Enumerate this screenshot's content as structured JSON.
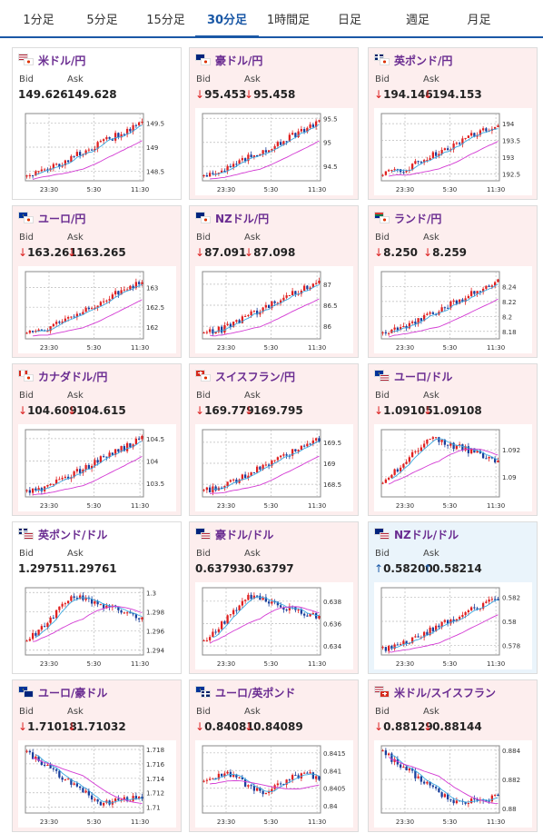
{
  "tabs": [
    {
      "label": "1分足",
      "active": false
    },
    {
      "label": "5分足",
      "active": false
    },
    {
      "label": "15分足",
      "active": false
    },
    {
      "label": "30分足",
      "active": true
    },
    {
      "label": "1時間足",
      "active": false
    },
    {
      "label": "日足",
      "active": false
    },
    {
      "label": "週足",
      "active": false
    },
    {
      "label": "月足",
      "active": false
    }
  ],
  "colors": {
    "accent": "#1a58a6",
    "pair_name": "#6a2c91",
    "down_bg": "#fdeeee",
    "up_bg": "#eaf4fb",
    "candle_up": "#e02020",
    "candle_down": "#1a3f9c",
    "ma_fast": "#3aa8e0",
    "ma_slow": "#d33ad3"
  },
  "labels": {
    "bid": "Bid",
    "ask": "Ask"
  },
  "cards": [
    {
      "name": "米ドル/円",
      "flags": [
        "us",
        "jp"
      ],
      "trend": "none",
      "bid": "149.626",
      "ask": "149.628",
      "chart_data": {
        "type": "candlestick",
        "x_ticks": [
          "23:30",
          "5:30",
          "11:30"
        ],
        "y_ticks": [
          "149.5",
          "149",
          "148.5"
        ],
        "ylim": [
          148.3,
          149.7
        ],
        "shape": "rise"
      }
    },
    {
      "name": "豪ドル/円",
      "flags": [
        "au",
        "jp"
      ],
      "trend": "down",
      "bid": "95.453",
      "ask": "95.458",
      "chart_data": {
        "type": "candlestick",
        "x_ticks": [
          "23:30",
          "5:30",
          "11:30"
        ],
        "y_ticks": [
          "95.5",
          "95",
          "94.5"
        ],
        "ylim": [
          94.2,
          95.6
        ],
        "shape": "rise"
      }
    },
    {
      "name": "英ポンド/円",
      "flags": [
        "gb",
        "jp"
      ],
      "trend": "down",
      "bid": "194.146",
      "ask": "194.153",
      "chart_data": {
        "type": "candlestick",
        "x_ticks": [
          "23:30",
          "5:30",
          "11:30"
        ],
        "y_ticks": [
          "194",
          "193.5",
          "193",
          "192.5"
        ],
        "ylim": [
          192.3,
          194.3
        ],
        "shape": "rise"
      }
    },
    {
      "name": "ユーロ/円",
      "flags": [
        "eu",
        "jp"
      ],
      "trend": "down",
      "bid": "163.261",
      "ask": "163.265",
      "chart_data": {
        "type": "candlestick",
        "x_ticks": [
          "23:30",
          "5:30",
          "11:30"
        ],
        "y_ticks": [
          "163",
          "162.5",
          "162"
        ],
        "ylim": [
          161.7,
          163.4
        ],
        "shape": "rise"
      }
    },
    {
      "name": "NZドル/円",
      "flags": [
        "nz",
        "jp"
      ],
      "trend": "down",
      "bid": "87.091",
      "ask": "87.098",
      "chart_data": {
        "type": "candlestick",
        "x_ticks": [
          "23:30",
          "5:30",
          "11:30"
        ],
        "y_ticks": [
          "87",
          "86.5",
          "86"
        ],
        "ylim": [
          85.7,
          87.3
        ],
        "shape": "rise"
      }
    },
    {
      "name": "ランド/円",
      "flags": [
        "za",
        "jp"
      ],
      "trend": "down",
      "bid": "8.250",
      "ask": "8.259",
      "chart_data": {
        "type": "candlestick",
        "x_ticks": [
          "23:30",
          "5:30",
          "11:30"
        ],
        "y_ticks": [
          "8.24",
          "8.22",
          "8.2",
          "8.18"
        ],
        "ylim": [
          8.17,
          8.26
        ],
        "shape": "rise"
      }
    },
    {
      "name": "カナダドル/円",
      "flags": [
        "ca",
        "jp"
      ],
      "trend": "down",
      "bid": "104.609",
      "ask": "104.615",
      "chart_data": {
        "type": "candlestick",
        "x_ticks": [
          "23:30",
          "5:30",
          "11:30"
        ],
        "y_ticks": [
          "104.5",
          "104",
          "103.5"
        ],
        "ylim": [
          103.2,
          104.7
        ],
        "shape": "rise"
      }
    },
    {
      "name": "スイスフラン/円",
      "flags": [
        "ch",
        "jp"
      ],
      "trend": "down",
      "bid": "169.779",
      "ask": "169.795",
      "chart_data": {
        "type": "candlestick",
        "x_ticks": [
          "23:30",
          "5:30",
          "11:30"
        ],
        "y_ticks": [
          "169.5",
          "169",
          "168.5"
        ],
        "ylim": [
          168.2,
          169.8
        ],
        "shape": "rise"
      }
    },
    {
      "name": "ユーロ/ドル",
      "flags": [
        "eu",
        "us"
      ],
      "trend": "down",
      "bid": "1.09105",
      "ask": "1.09108",
      "chart_data": {
        "type": "candlestick",
        "x_ticks": [
          "23:30",
          "5:30",
          "11:30"
        ],
        "y_ticks": [
          "1.092",
          "1.09"
        ],
        "ylim": [
          1.0885,
          1.0935
        ],
        "shape": "riseFall"
      }
    },
    {
      "name": "英ポンド/ドル",
      "flags": [
        "gb",
        "us"
      ],
      "trend": "none",
      "bid": "1.29751",
      "ask": "1.29761",
      "chart_data": {
        "type": "candlestick",
        "x_ticks": [
          "23:30",
          "5:30",
          "11:30"
        ],
        "y_ticks": [
          "1.3",
          "1.298",
          "1.296",
          "1.294"
        ],
        "ylim": [
          1.2935,
          1.3005
        ],
        "shape": "riseFall"
      }
    },
    {
      "name": "豪ドル/ドル",
      "flags": [
        "au",
        "us"
      ],
      "trend": "none",
      "bid": "0.63793",
      "ask": "0.63797",
      "chart_data": {
        "type": "candlestick",
        "x_ticks": [
          "23:30",
          "5:30",
          "11:30"
        ],
        "y_ticks": [
          "0.638",
          "0.636",
          "0.634"
        ],
        "ylim": [
          0.6332,
          0.6392
        ],
        "shape": "riseFall"
      }
    },
    {
      "name": "NZドル/ドル",
      "flags": [
        "nz",
        "us"
      ],
      "trend": "up",
      "bid": "0.58200",
      "ask": "0.58214",
      "chart_data": {
        "type": "candlestick",
        "x_ticks": [
          "23:30",
          "5:30",
          "11:30"
        ],
        "y_ticks": [
          "0.582",
          "0.58",
          "0.578"
        ],
        "ylim": [
          0.5772,
          0.5828
        ],
        "shape": "rise"
      }
    },
    {
      "name": "ユーロ/豪ドル",
      "flags": [
        "eu",
        "au"
      ],
      "trend": "down",
      "bid": "1.71018",
      "ask": "1.71032",
      "chart_data": {
        "type": "candlestick",
        "x_ticks": [
          "23:30",
          "5:30",
          "11:30"
        ],
        "y_ticks": [
          "1.718",
          "1.716",
          "1.714",
          "1.712",
          "1.71"
        ],
        "ylim": [
          1.7092,
          1.7185
        ],
        "shape": "fall"
      }
    },
    {
      "name": "ユーロ/英ポンド",
      "flags": [
        "eu",
        "gb"
      ],
      "trend": "down",
      "bid": "0.84081",
      "ask": "0.84089",
      "chart_data": {
        "type": "candlestick",
        "x_ticks": [
          "23:30",
          "5:30",
          "11:30"
        ],
        "y_ticks": [
          "0.8415",
          "0.841",
          "0.8405",
          "0.84"
        ],
        "ylim": [
          0.8398,
          0.8417
        ],
        "shape": "flat"
      }
    },
    {
      "name": "米ドル/スイスフラン",
      "flags": [
        "us",
        "ch"
      ],
      "trend": "down",
      "bid": "0.88129",
      "ask": "0.88144",
      "chart_data": {
        "type": "candlestick",
        "x_ticks": [
          "23:30",
          "5:30",
          "11:30"
        ],
        "y_ticks": [
          "0.884",
          "0.882",
          "0.88"
        ],
        "ylim": [
          0.8797,
          0.8843
        ],
        "shape": "fall"
      }
    }
  ]
}
